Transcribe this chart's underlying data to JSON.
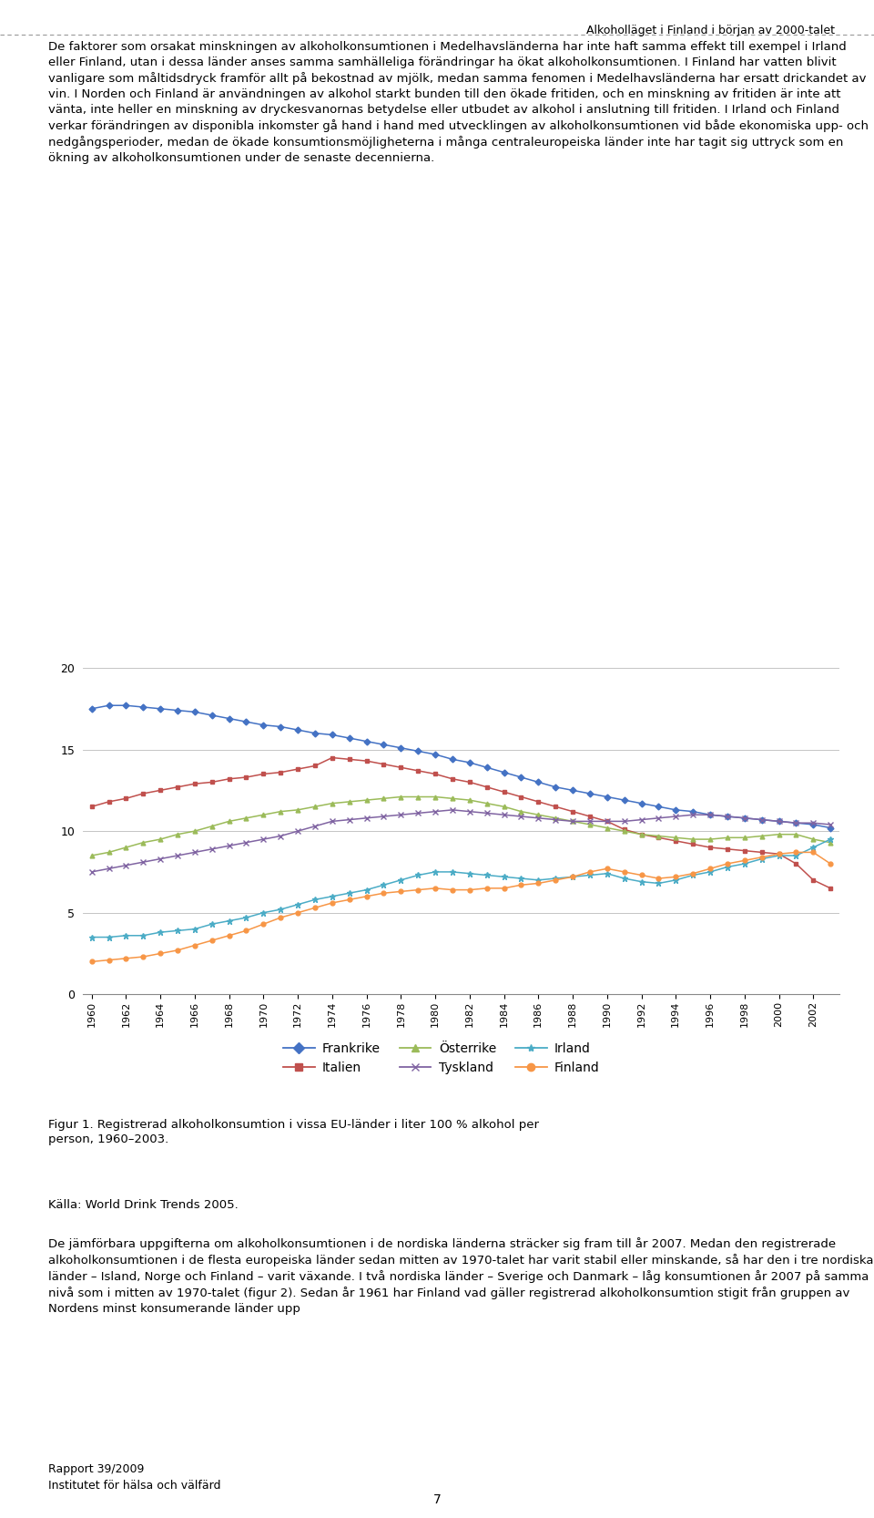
{
  "header": "Alkoholläget i Finland i början av 2000-talet",
  "para1": "De faktorer som orsakat minskningen av alkoholkonsumtionen i Medelhavsländerna har inte haft samma effekt till exempel i Irland eller Finland, utan i dessa länder anses samma samhälleliga förändringar ha ökat alkoholkonsumtionen. I Finland har vatten blivit vanligare som måltidsdryck framför allt på bekostnad av mjölk, medan samma fenomen i Medelhavsländerna har ersatt drickandet av vin. I Norden och Finland är användningen av alkohol starkt bunden till den ökade fritiden, och en minskning av fritiden är inte att vänta, inte heller en minskning av dryckesvanornas betydelse eller utbudet av alkohol i anslutning till fritiden. I Irland och Finland verkar förändringen av disponibla inkomster gå hand i hand med utvecklingen av alkoholkonsumtionen vid både ekonomiska upp- och nedgångsperioder, medan de ökade konsumtionsmöjligheterna i många centraleuropeiska länder inte har tagit sig uttryck som en ökning av alkoholkonsumtionen under de senaste decennierna.",
  "para2": "De jämförbara uppgifterna om alkoholkonsumtionen i de nordiska länderna sträcker sig fram till år 2007. Medan den registrerade alkoholkonsumtionen i de flesta europeiska länder sedan mitten av 1970-talet har varit stabil eller minskande, så har den i tre nordiska länder – Island, Norge och Finland – varit växande. I två nordiska länder – Sverige och Danmark – låg konsumtionen år 2007 på samma nivå som i mitten av 1970-talet (figur 2). Sedan år 1961 har Finland vad gäller registrerad alkoholkonsumtion stigit från gruppen av Nordens minst konsumerande länder upp",
  "fig_caption": "Figur 1. Registrerad alkoholkonsumtion i vissa EU-länder i liter 100 % alkohol per\nperson, 1960–2003.",
  "source": "Källa: World Drink Trends 2005.",
  "footer_left": "Rapport 39/2009\nInstitutet för hälsa och välfärd",
  "footer_page": "7",
  "years": [
    1960,
    1961,
    1962,
    1963,
    1964,
    1965,
    1966,
    1967,
    1968,
    1969,
    1970,
    1971,
    1972,
    1973,
    1974,
    1975,
    1976,
    1977,
    1978,
    1979,
    1980,
    1981,
    1982,
    1983,
    1984,
    1985,
    1986,
    1987,
    1988,
    1989,
    1990,
    1991,
    1992,
    1993,
    1994,
    1995,
    1996,
    1997,
    1998,
    1999,
    2000,
    2001,
    2002,
    2003
  ],
  "frankrike": [
    17.5,
    17.7,
    17.7,
    17.6,
    17.5,
    17.4,
    17.3,
    17.1,
    16.9,
    16.7,
    16.5,
    16.4,
    16.2,
    16.0,
    15.9,
    15.7,
    15.5,
    15.3,
    15.1,
    14.9,
    14.7,
    14.4,
    14.2,
    13.9,
    13.6,
    13.3,
    13.0,
    12.7,
    12.5,
    12.3,
    12.1,
    11.9,
    11.7,
    11.5,
    11.3,
    11.2,
    11.0,
    10.9,
    10.8,
    10.7,
    10.6,
    10.5,
    10.4,
    10.2
  ],
  "italien": [
    11.5,
    11.8,
    12.0,
    12.3,
    12.5,
    12.7,
    12.9,
    13.0,
    13.2,
    13.3,
    13.5,
    13.6,
    13.8,
    14.0,
    14.5,
    14.4,
    14.3,
    14.1,
    13.9,
    13.7,
    13.5,
    13.2,
    13.0,
    12.7,
    12.4,
    12.1,
    11.8,
    11.5,
    11.2,
    10.9,
    10.6,
    10.1,
    9.8,
    9.6,
    9.4,
    9.2,
    9.0,
    8.9,
    8.8,
    8.7,
    8.6,
    8.0,
    7.0,
    6.5
  ],
  "osterrike": [
    8.5,
    8.7,
    9.0,
    9.3,
    9.5,
    9.8,
    10.0,
    10.3,
    10.6,
    10.8,
    11.0,
    11.2,
    11.3,
    11.5,
    11.7,
    11.8,
    11.9,
    12.0,
    12.1,
    12.1,
    12.1,
    12.0,
    11.9,
    11.7,
    11.5,
    11.2,
    11.0,
    10.8,
    10.6,
    10.4,
    10.2,
    10.0,
    9.8,
    9.7,
    9.6,
    9.5,
    9.5,
    9.6,
    9.6,
    9.7,
    9.8,
    9.8,
    9.5,
    9.3
  ],
  "tyskland": [
    7.5,
    7.7,
    7.9,
    8.1,
    8.3,
    8.5,
    8.7,
    8.9,
    9.1,
    9.3,
    9.5,
    9.7,
    10.0,
    10.3,
    10.6,
    10.7,
    10.8,
    10.9,
    11.0,
    11.1,
    11.2,
    11.3,
    11.2,
    11.1,
    11.0,
    10.9,
    10.8,
    10.7,
    10.6,
    10.6,
    10.6,
    10.6,
    10.7,
    10.8,
    10.9,
    11.0,
    11.0,
    10.9,
    10.8,
    10.7,
    10.6,
    10.5,
    10.5,
    10.4
  ],
  "irland": [
    3.5,
    3.5,
    3.6,
    3.6,
    3.8,
    3.9,
    4.0,
    4.3,
    4.5,
    4.7,
    5.0,
    5.2,
    5.5,
    5.8,
    6.0,
    6.2,
    6.4,
    6.7,
    7.0,
    7.3,
    7.5,
    7.5,
    7.4,
    7.3,
    7.2,
    7.1,
    7.0,
    7.1,
    7.2,
    7.3,
    7.4,
    7.1,
    6.9,
    6.8,
    7.0,
    7.3,
    7.5,
    7.8,
    8.0,
    8.3,
    8.5,
    8.5,
    9.0,
    9.5
  ],
  "finland": [
    2.0,
    2.1,
    2.2,
    2.3,
    2.5,
    2.7,
    3.0,
    3.3,
    3.6,
    3.9,
    4.3,
    4.7,
    5.0,
    5.3,
    5.6,
    5.8,
    6.0,
    6.2,
    6.3,
    6.4,
    6.5,
    6.4,
    6.4,
    6.5,
    6.5,
    6.7,
    6.8,
    7.0,
    7.2,
    7.5,
    7.7,
    7.5,
    7.3,
    7.1,
    7.2,
    7.4,
    7.7,
    8.0,
    8.2,
    8.4,
    8.6,
    8.7,
    8.7,
    8.0
  ],
  "colors": {
    "frankrike": "#4472C4",
    "italien": "#C0504D",
    "osterrike": "#9BBB59",
    "tyskland": "#8064A2",
    "irland": "#4BACC6",
    "finland": "#F79646"
  },
  "legend_labels": {
    "frankrike": "Frankrike",
    "italien": "Italien",
    "osterrike": "Österrike",
    "tyskland": "Tyskland",
    "irland": "Irland",
    "finland": "Finland"
  },
  "markers": {
    "frankrike": "D",
    "italien": "s",
    "osterrike": "^",
    "tyskland": "x",
    "irland": "*",
    "finland": "o"
  },
  "ylim": [
    0,
    20
  ],
  "yticks": [
    0,
    5,
    10,
    15,
    20
  ],
  "bg": "#FFFFFF"
}
